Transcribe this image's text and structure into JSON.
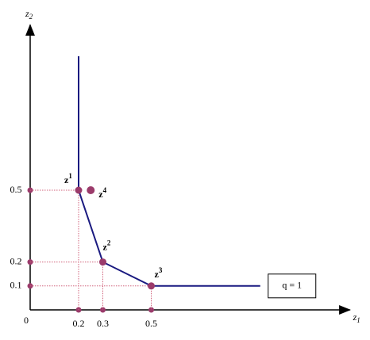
{
  "chart_data": {
    "type": "line",
    "x_label": {
      "text": "z",
      "sub": "1"
    },
    "y_label": {
      "text": "z",
      "sub": "2"
    },
    "xlim": [
      0,
      1.32
    ],
    "ylim": [
      0,
      1.19
    ],
    "xticks": [
      0,
      0.2,
      0.3,
      0.5
    ],
    "yticks": [
      0.1,
      0.2,
      0.5
    ],
    "series": [
      {
        "name": "q = 1",
        "color": "#1a1a80",
        "x": [
          0.2,
          0.2,
          0.3,
          0.5,
          0.95
        ],
        "values": [
          1.06,
          0.5,
          0.2,
          0.1,
          0.1
        ]
      }
    ],
    "points": [
      {
        "label": "z",
        "sup": "1",
        "x": 0.2,
        "y": 0.5,
        "guide": true
      },
      {
        "label": "z",
        "sup": "2",
        "x": 0.3,
        "y": 0.2,
        "guide": true
      },
      {
        "label": "z",
        "sup": "3",
        "x": 0.5,
        "y": 0.1,
        "guide": true
      },
      {
        "label": "z",
        "sup": "4",
        "x": 0.25,
        "y": 0.5,
        "guide": false
      }
    ],
    "point_color": "#9b3b6b"
  }
}
